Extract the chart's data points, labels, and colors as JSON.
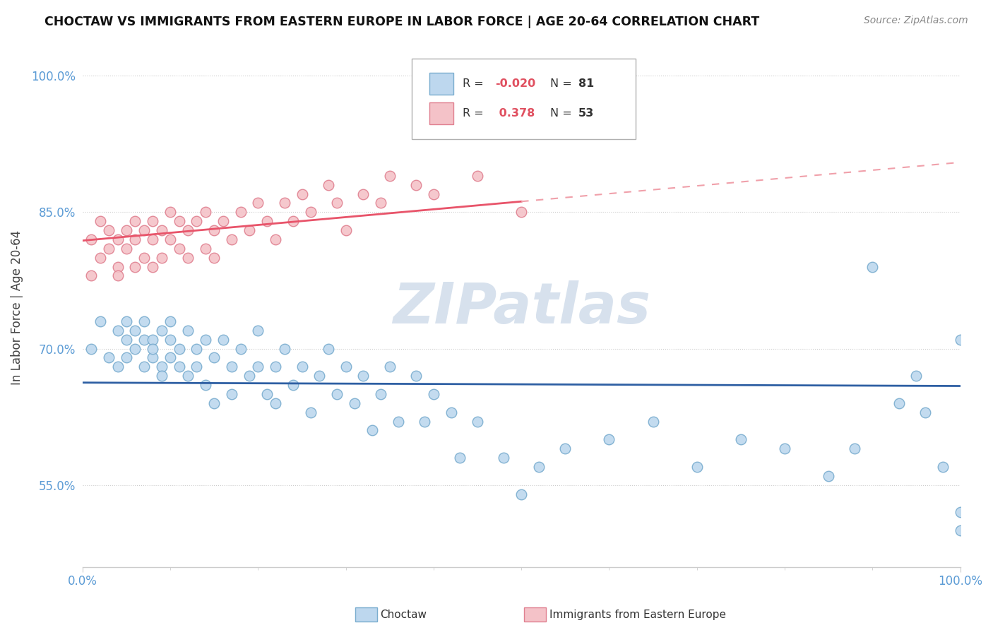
{
  "title": "CHOCTAW VS IMMIGRANTS FROM EASTERN EUROPE IN LABOR FORCE | AGE 20-64 CORRELATION CHART",
  "source": "Source: ZipAtlas.com",
  "ylabel": "In Labor Force | Age 20-64",
  "xlim": [
    0.0,
    1.0
  ],
  "ylim": [
    0.46,
    1.03
  ],
  "yticks": [
    0.55,
    0.7,
    0.85,
    1.0
  ],
  "ytick_labels": [
    "55.0%",
    "70.0%",
    "85.0%",
    "100.0%"
  ],
  "xtick_labels": [
    "0.0%",
    "100.0%"
  ],
  "legend_r1": "R = -0.020",
  "legend_n1": "N = 81",
  "legend_r2": "R =  0.378",
  "legend_n2": "N = 53",
  "blue_color": "#bdd7ee",
  "blue_edge": "#7aadcf",
  "pink_color": "#f4c2c8",
  "pink_edge": "#e08090",
  "trend_blue": "#2e5fa3",
  "trend_pink": "#e8546a",
  "trend_pink_dash": "#f0a0aa",
  "watermark": "ZIPatlas",
  "watermark_color": "#d0dcea",
  "blue_x": [
    0.01,
    0.02,
    0.03,
    0.04,
    0.04,
    0.05,
    0.05,
    0.05,
    0.06,
    0.06,
    0.07,
    0.07,
    0.07,
    0.08,
    0.08,
    0.08,
    0.09,
    0.09,
    0.09,
    0.1,
    0.1,
    0.1,
    0.11,
    0.11,
    0.12,
    0.12,
    0.13,
    0.13,
    0.14,
    0.14,
    0.15,
    0.15,
    0.16,
    0.17,
    0.17,
    0.18,
    0.19,
    0.2,
    0.2,
    0.21,
    0.22,
    0.22,
    0.23,
    0.24,
    0.25,
    0.26,
    0.27,
    0.28,
    0.29,
    0.3,
    0.31,
    0.32,
    0.33,
    0.34,
    0.35,
    0.36,
    0.38,
    0.39,
    0.4,
    0.42,
    0.43,
    0.45,
    0.48,
    0.5,
    0.52,
    0.55,
    0.6,
    0.65,
    0.7,
    0.75,
    0.8,
    0.85,
    0.88,
    0.9,
    0.93,
    0.95,
    0.96,
    0.98,
    1.0,
    1.0,
    1.0
  ],
  "blue_y": [
    0.7,
    0.73,
    0.69,
    0.72,
    0.68,
    0.71,
    0.73,
    0.69,
    0.7,
    0.72,
    0.68,
    0.71,
    0.73,
    0.69,
    0.71,
    0.7,
    0.68,
    0.72,
    0.67,
    0.69,
    0.71,
    0.73,
    0.7,
    0.68,
    0.72,
    0.67,
    0.7,
    0.68,
    0.66,
    0.71,
    0.69,
    0.64,
    0.71,
    0.68,
    0.65,
    0.7,
    0.67,
    0.68,
    0.72,
    0.65,
    0.68,
    0.64,
    0.7,
    0.66,
    0.68,
    0.63,
    0.67,
    0.7,
    0.65,
    0.68,
    0.64,
    0.67,
    0.61,
    0.65,
    0.68,
    0.62,
    0.67,
    0.62,
    0.65,
    0.63,
    0.58,
    0.62,
    0.58,
    0.54,
    0.57,
    0.59,
    0.6,
    0.62,
    0.57,
    0.6,
    0.59,
    0.56,
    0.59,
    0.79,
    0.64,
    0.67,
    0.63,
    0.57,
    0.5,
    0.52,
    0.71
  ],
  "pink_x": [
    0.01,
    0.01,
    0.02,
    0.02,
    0.03,
    0.03,
    0.04,
    0.04,
    0.04,
    0.05,
    0.05,
    0.06,
    0.06,
    0.06,
    0.07,
    0.07,
    0.08,
    0.08,
    0.08,
    0.09,
    0.09,
    0.1,
    0.1,
    0.11,
    0.11,
    0.12,
    0.12,
    0.13,
    0.14,
    0.14,
    0.15,
    0.15,
    0.16,
    0.17,
    0.18,
    0.19,
    0.2,
    0.21,
    0.22,
    0.23,
    0.24,
    0.25,
    0.26,
    0.28,
    0.29,
    0.3,
    0.32,
    0.34,
    0.35,
    0.38,
    0.4,
    0.45,
    0.5
  ],
  "pink_y": [
    0.82,
    0.78,
    0.8,
    0.84,
    0.81,
    0.83,
    0.79,
    0.82,
    0.78,
    0.81,
    0.83,
    0.79,
    0.82,
    0.84,
    0.8,
    0.83,
    0.79,
    0.82,
    0.84,
    0.8,
    0.83,
    0.82,
    0.85,
    0.81,
    0.84,
    0.8,
    0.83,
    0.84,
    0.81,
    0.85,
    0.83,
    0.8,
    0.84,
    0.82,
    0.85,
    0.83,
    0.86,
    0.84,
    0.82,
    0.86,
    0.84,
    0.87,
    0.85,
    0.88,
    0.86,
    0.83,
    0.87,
    0.86,
    0.89,
    0.88,
    0.87,
    0.89,
    0.85
  ]
}
